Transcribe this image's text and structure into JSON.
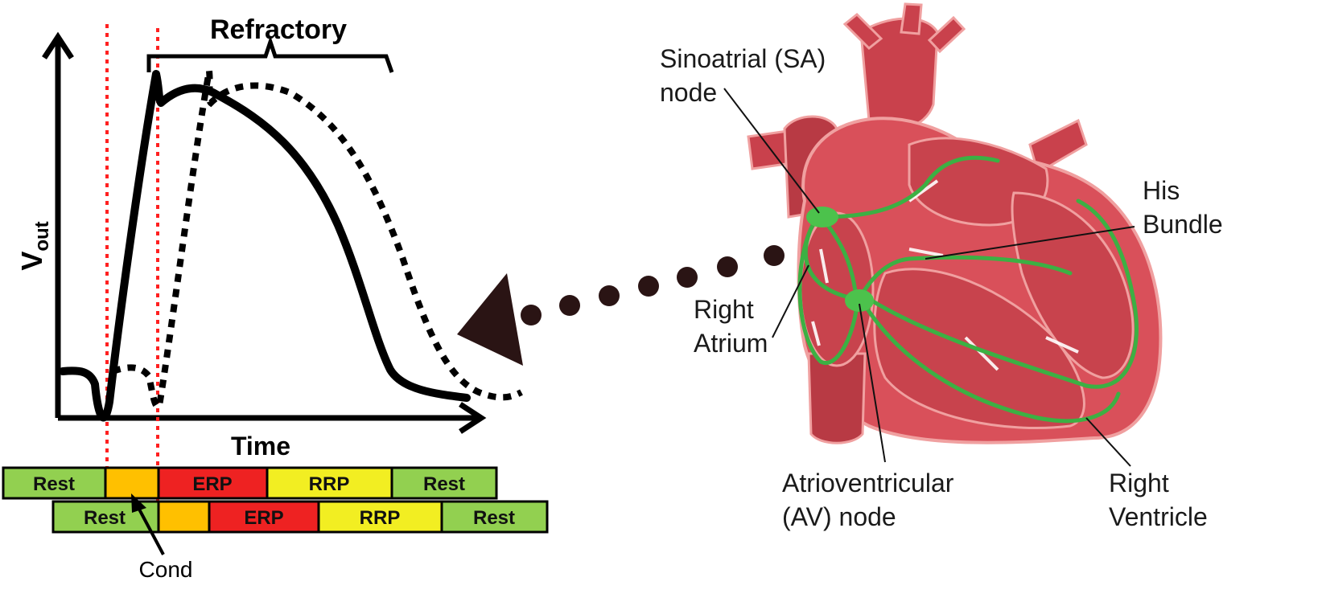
{
  "left_plot": {
    "ylabel": "V",
    "ylabel_sub": "out",
    "xlabel": "Time",
    "bracket_label": "Refractory"
  },
  "phase_bars": {
    "row1": [
      {
        "label": "Rest",
        "color": "#92d050"
      },
      {
        "label": "",
        "color": "#ffc000"
      },
      {
        "label": "ERP",
        "color": "#ee2222"
      },
      {
        "label": "RRP",
        "color": "#f2ee22"
      },
      {
        "label": "Rest",
        "color": "#92d050"
      }
    ],
    "row2": [
      {
        "label": "Rest",
        "color": "#92d050"
      },
      {
        "label": "",
        "color": "#ffc000"
      },
      {
        "label": "ERP",
        "color": "#ee2222"
      },
      {
        "label": "RRP",
        "color": "#f2ee22"
      },
      {
        "label": "Rest",
        "color": "#92d050"
      }
    ],
    "pointer_label": "Cond"
  },
  "heart": {
    "sa_node": [
      "Sinoatrial (SA)",
      "node"
    ],
    "his_bundle": [
      "His",
      "Bundle"
    ],
    "right_atrium": [
      "Right",
      "Atrium"
    ],
    "av_node": [
      "Atrioventricular",
      "(AV) node"
    ],
    "right_ventricle": [
      "Right",
      "Ventricle"
    ]
  },
  "colors": {
    "heart_fill": "#d9505a",
    "heart_outline": "#f0a0a0",
    "conduction": "#3cb043",
    "guide_line": "#ff2020",
    "dots": "#2a1414"
  }
}
